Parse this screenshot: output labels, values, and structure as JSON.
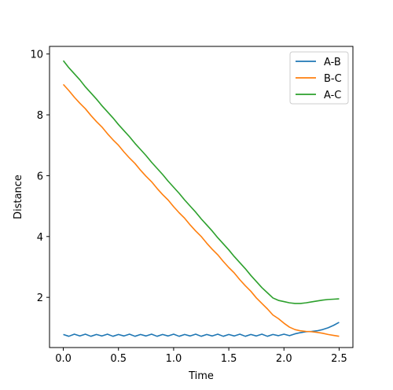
{
  "chart_data": {
    "type": "line",
    "title": "",
    "xlabel": "Time",
    "ylabel": "Distance",
    "xlim": [
      -0.125,
      2.625
    ],
    "ylim": [
      0.35,
      10.25
    ],
    "xticks": [
      0.0,
      0.5,
      1.0,
      1.5,
      2.0,
      2.5
    ],
    "xtick_labels": [
      "0.0",
      "0.5",
      "1.0",
      "1.5",
      "2.0",
      "2.5"
    ],
    "yticks": [
      2,
      4,
      6,
      8,
      10
    ],
    "ytick_labels": [
      "2",
      "4",
      "6",
      "8",
      "10"
    ],
    "grid": false,
    "legend_position": "top-right",
    "series": [
      {
        "name": "A-B",
        "color": "#1f77b4",
        "x": [
          0.0,
          0.05,
          0.1,
          0.15,
          0.2,
          0.25,
          0.3,
          0.35,
          0.4,
          0.45,
          0.5,
          0.55,
          0.6,
          0.65,
          0.7,
          0.75,
          0.8,
          0.85,
          0.9,
          0.95,
          1.0,
          1.05,
          1.1,
          1.15,
          1.2,
          1.25,
          1.3,
          1.35,
          1.4,
          1.45,
          1.5,
          1.55,
          1.6,
          1.65,
          1.7,
          1.75,
          1.8,
          1.85,
          1.9,
          1.95,
          2.0,
          2.05,
          2.1,
          2.15,
          2.2,
          2.25,
          2.3,
          2.35,
          2.4,
          2.45,
          2.5
        ],
        "values": [
          0.78,
          0.72,
          0.79,
          0.73,
          0.79,
          0.72,
          0.78,
          0.73,
          0.79,
          0.72,
          0.78,
          0.73,
          0.79,
          0.72,
          0.78,
          0.73,
          0.79,
          0.72,
          0.78,
          0.73,
          0.79,
          0.72,
          0.78,
          0.73,
          0.79,
          0.72,
          0.78,
          0.73,
          0.79,
          0.72,
          0.78,
          0.73,
          0.79,
          0.72,
          0.78,
          0.73,
          0.79,
          0.72,
          0.78,
          0.74,
          0.79,
          0.74,
          0.8,
          0.84,
          0.87,
          0.88,
          0.9,
          0.94,
          1.0,
          1.08,
          1.18
        ]
      },
      {
        "name": "B-C",
        "color": "#ff7f0e",
        "x": [
          0.0,
          0.05,
          0.1,
          0.15,
          0.2,
          0.25,
          0.3,
          0.35,
          0.4,
          0.45,
          0.5,
          0.55,
          0.6,
          0.65,
          0.7,
          0.75,
          0.8,
          0.85,
          0.9,
          0.95,
          1.0,
          1.05,
          1.1,
          1.15,
          1.2,
          1.25,
          1.3,
          1.35,
          1.4,
          1.45,
          1.5,
          1.55,
          1.6,
          1.65,
          1.7,
          1.75,
          1.8,
          1.85,
          1.9,
          1.95,
          2.0,
          2.05,
          2.1,
          2.15,
          2.2,
          2.25,
          2.3,
          2.35,
          2.4,
          2.45,
          2.5
        ],
        "values": [
          9.0,
          8.8,
          8.58,
          8.38,
          8.2,
          7.98,
          7.78,
          7.6,
          7.38,
          7.18,
          7.0,
          6.78,
          6.58,
          6.4,
          6.18,
          5.98,
          5.8,
          5.58,
          5.38,
          5.2,
          4.98,
          4.78,
          4.6,
          4.38,
          4.18,
          4.0,
          3.78,
          3.58,
          3.4,
          3.18,
          2.98,
          2.8,
          2.58,
          2.38,
          2.2,
          1.98,
          1.8,
          1.62,
          1.42,
          1.3,
          1.15,
          1.02,
          0.94,
          0.9,
          0.88,
          0.87,
          0.85,
          0.82,
          0.78,
          0.75,
          0.72
        ]
      },
      {
        "name": "A-C",
        "color": "#2ca02c",
        "x": [
          0.0,
          0.05,
          0.1,
          0.15,
          0.2,
          0.25,
          0.3,
          0.35,
          0.4,
          0.45,
          0.5,
          0.55,
          0.6,
          0.65,
          0.7,
          0.75,
          0.8,
          0.85,
          0.9,
          0.95,
          1.0,
          1.05,
          1.1,
          1.15,
          1.2,
          1.25,
          1.3,
          1.35,
          1.4,
          1.45,
          1.5,
          1.55,
          1.6,
          1.65,
          1.7,
          1.75,
          1.8,
          1.85,
          1.9,
          1.95,
          2.0,
          2.05,
          2.1,
          2.15,
          2.2,
          2.25,
          2.3,
          2.35,
          2.4,
          2.45,
          2.5
        ],
        "values": [
          9.78,
          9.55,
          9.35,
          9.15,
          8.92,
          8.72,
          8.52,
          8.3,
          8.1,
          7.9,
          7.68,
          7.48,
          7.28,
          7.06,
          6.86,
          6.66,
          6.44,
          6.24,
          6.04,
          5.82,
          5.62,
          5.42,
          5.2,
          5.0,
          4.8,
          4.58,
          4.38,
          4.18,
          3.96,
          3.76,
          3.56,
          3.34,
          3.14,
          2.94,
          2.72,
          2.52,
          2.32,
          2.15,
          1.98,
          1.9,
          1.86,
          1.82,
          1.8,
          1.8,
          1.82,
          1.85,
          1.88,
          1.91,
          1.93,
          1.94,
          1.95
        ]
      }
    ]
  }
}
